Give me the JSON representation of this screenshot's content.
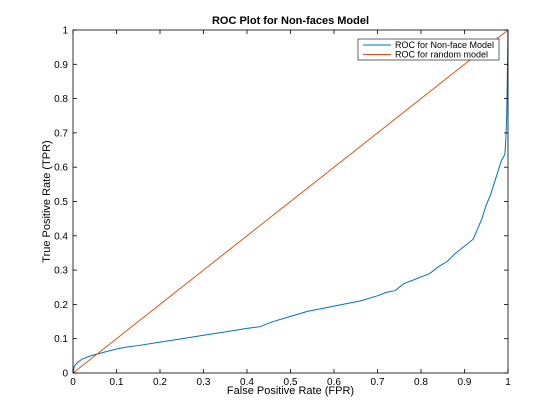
{
  "chart_data": {
    "type": "line",
    "title": "ROC Plot for Non-faces Model",
    "xlabel": "False Positive Rate (FPR)",
    "ylabel": "True Positive Rate (TPR)",
    "xlim": [
      0,
      1
    ],
    "ylim": [
      0,
      1
    ],
    "xticks": [
      0,
      0.1,
      0.2,
      0.3,
      0.4,
      0.5,
      0.6,
      0.7,
      0.8,
      0.9,
      1
    ],
    "yticks": [
      0,
      0.1,
      0.2,
      0.3,
      0.4,
      0.5,
      0.6,
      0.7,
      0.8,
      0.9,
      1
    ],
    "xtick_labels": [
      "0",
      "0.1",
      "0.2",
      "0.3",
      "0.4",
      "0.5",
      "0.6",
      "0.7",
      "0.8",
      "0.9",
      "1"
    ],
    "ytick_labels": [
      "0",
      "0.1",
      "0.2",
      "0.3",
      "0.4",
      "0.5",
      "0.6",
      "0.7",
      "0.8",
      "0.9",
      "1"
    ],
    "grid": false,
    "legend_position": "top-right",
    "series": [
      {
        "name": "ROC for Non-face Model",
        "color": "#0072bd",
        "x": [
          0,
          0.003,
          0.01,
          0.02,
          0.04,
          0.07,
          0.1,
          0.12,
          0.15,
          0.2,
          0.25,
          0.3,
          0.35,
          0.4,
          0.43,
          0.46,
          0.5,
          0.54,
          0.58,
          0.62,
          0.66,
          0.7,
          0.72,
          0.74,
          0.75,
          0.76,
          0.78,
          0.8,
          0.82,
          0.84,
          0.86,
          0.88,
          0.9,
          0.92,
          0.93,
          0.94,
          0.95,
          0.96,
          0.97,
          0.975,
          0.98,
          0.985,
          0.99,
          0.993,
          0.995,
          0.997,
          0.999,
          1
        ],
        "y": [
          0,
          0.02,
          0.03,
          0.04,
          0.05,
          0.06,
          0.07,
          0.075,
          0.08,
          0.09,
          0.1,
          0.11,
          0.12,
          0.13,
          0.135,
          0.15,
          0.165,
          0.18,
          0.19,
          0.2,
          0.21,
          0.225,
          0.235,
          0.24,
          0.25,
          0.26,
          0.27,
          0.28,
          0.29,
          0.31,
          0.325,
          0.35,
          0.37,
          0.39,
          0.42,
          0.45,
          0.49,
          0.52,
          0.56,
          0.58,
          0.6,
          0.62,
          0.63,
          0.64,
          0.68,
          0.75,
          0.9,
          1
        ]
      },
      {
        "name": "ROC for random model",
        "color": "#d95319",
        "x": [
          0,
          1
        ],
        "y": [
          0,
          1
        ]
      }
    ]
  }
}
